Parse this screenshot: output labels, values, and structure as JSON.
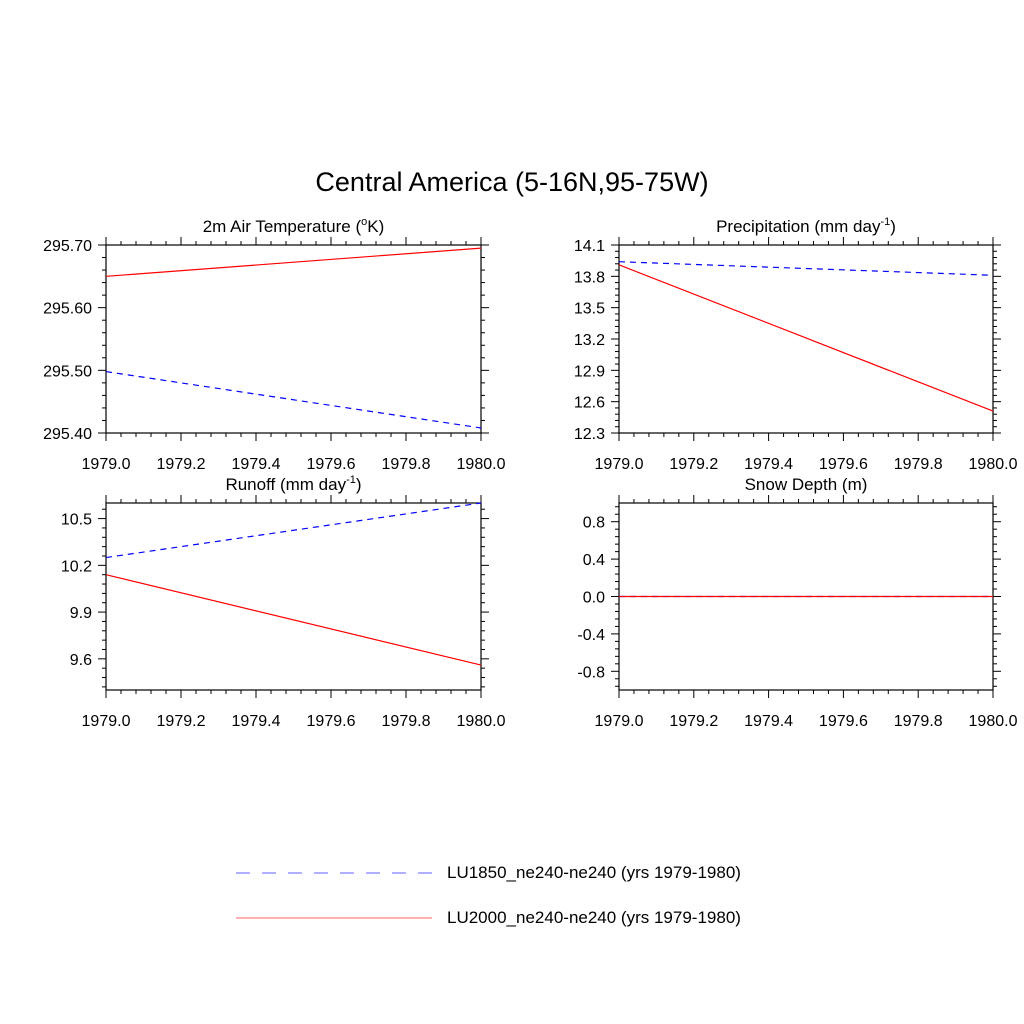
{
  "title": "Central America (5-16N,95-75W)",
  "chart_data": [
    {
      "type": "line",
      "title_main": "2m Air Temperature (",
      "title_sup_prefix": "o",
      "title_tail": "K)",
      "x": [
        1979.0,
        1980.0
      ],
      "xticks": [
        "1979.0",
        "1979.2",
        "1979.4",
        "1979.6",
        "1979.8",
        "1980.0"
      ],
      "ylim": [
        295.4,
        295.7
      ],
      "yticks": [
        "295.40",
        "295.50",
        "295.60",
        "295.70"
      ],
      "series": [
        {
          "name": "LU1850_ne240-ne240 (yrs 1979-1980)",
          "values": [
            295.498,
            295.408
          ]
        },
        {
          "name": "LU2000_ne240-ne240 (yrs 1979-1980)",
          "values": [
            295.65,
            295.695
          ]
        }
      ]
    },
    {
      "type": "line",
      "title_main": "Precipitation (mm day",
      "title_sup_prefix": "-1",
      "title_tail": ")",
      "x": [
        1979.0,
        1980.0
      ],
      "xticks": [
        "1979.0",
        "1979.2",
        "1979.4",
        "1979.6",
        "1979.8",
        "1980.0"
      ],
      "ylim": [
        12.3,
        14.1
      ],
      "yticks": [
        "12.3",
        "12.6",
        "12.9",
        "13.2",
        "13.5",
        "13.8",
        "14.1"
      ],
      "series": [
        {
          "name": "LU1850_ne240-ne240 (yrs 1979-1980)",
          "values": [
            13.94,
            13.81
          ]
        },
        {
          "name": "LU2000_ne240-ne240 (yrs 1979-1980)",
          "values": [
            13.91,
            12.51
          ]
        }
      ]
    },
    {
      "type": "line",
      "title_main": "Runoff (mm day",
      "title_sup_prefix": "-1",
      "title_tail": ")",
      "x": [
        1979.0,
        1980.0
      ],
      "xticks": [
        "1979.0",
        "1979.2",
        "1979.4",
        "1979.6",
        "1979.8",
        "1980.0"
      ],
      "ylim": [
        9.4,
        10.6
      ],
      "yticks": [
        "9.6",
        "9.9",
        "10.2",
        "10.5"
      ],
      "series": [
        {
          "name": "LU1850_ne240-ne240 (yrs 1979-1980)",
          "values": [
            10.25,
            10.6
          ]
        },
        {
          "name": "LU2000_ne240-ne240 (yrs 1979-1980)",
          "values": [
            10.14,
            9.56
          ]
        }
      ]
    },
    {
      "type": "line",
      "title_main": "Snow Depth (m)",
      "title_sup_prefix": "",
      "title_tail": "",
      "x": [
        1979.0,
        1980.0
      ],
      "xticks": [
        "1979.0",
        "1979.2",
        "1979.4",
        "1979.6",
        "1979.8",
        "1980.0"
      ],
      "ylim": [
        -1.0,
        1.0
      ],
      "yticks": [
        "-0.8",
        "-0.4",
        "0.0",
        "0.4",
        "0.8"
      ],
      "series": [
        {
          "name": "LU1850_ne240-ne240 (yrs 1979-1980)",
          "values": [
            0.0,
            0.0
          ]
        },
        {
          "name": "LU2000_ne240-ne240 (yrs 1979-1980)",
          "values": [
            0.0,
            0.0
          ]
        }
      ]
    }
  ],
  "legend": [
    {
      "label": "LU1850_ne240-ne240 (yrs 1979-1980)",
      "color": "#0000ff",
      "style": "dashed"
    },
    {
      "label": "LU2000_ne240-ne240 (yrs 1979-1980)",
      "color": "#ff0000",
      "style": "solid"
    }
  ],
  "colors": {
    "series1": "#0000ff",
    "series2": "#ff0000",
    "axis": "#000000"
  }
}
